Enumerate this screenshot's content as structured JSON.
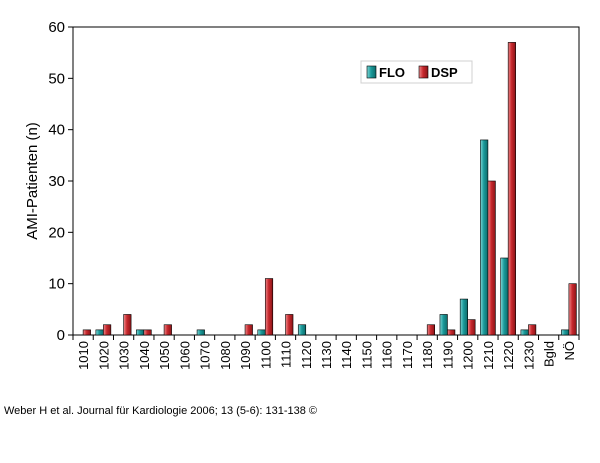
{
  "chart_data": {
    "type": "bar",
    "title": "",
    "xlabel": "",
    "ylabel": "AMI-Patienten (n)",
    "ylim": [
      0,
      60
    ],
    "yticks": [
      0,
      10,
      20,
      30,
      40,
      50,
      60
    ],
    "grid": false,
    "legend_position": "top-right",
    "categories": [
      "1010",
      "1020",
      "1030",
      "1040",
      "1050",
      "1060",
      "1070",
      "1080",
      "1090",
      "1100",
      "1110",
      "1120",
      "1130",
      "1140",
      "1150",
      "1160",
      "1170",
      "1180",
      "1190",
      "1200",
      "1210",
      "1220",
      "1230",
      "Bgld",
      "NÖ"
    ],
    "series": [
      {
        "name": "FLO",
        "color": "#1a9a9a",
        "values": [
          0,
          1,
          0,
          1,
          0,
          0,
          1,
          0,
          0,
          1,
          0,
          2,
          0,
          0,
          0,
          0,
          0,
          0,
          4,
          7,
          38,
          15,
          1,
          0,
          1
        ]
      },
      {
        "name": "DSP",
        "color": "#c8282d",
        "values": [
          1,
          2,
          4,
          1,
          2,
          0,
          0,
          0,
          2,
          11,
          4,
          0,
          0,
          0,
          0,
          0,
          0,
          2,
          1,
          3,
          30,
          57,
          2,
          0,
          10
        ]
      }
    ]
  },
  "source_text": "Weber H et al. Journal für Kardiologie 2006; 13 (5-6): 131-138 ©"
}
